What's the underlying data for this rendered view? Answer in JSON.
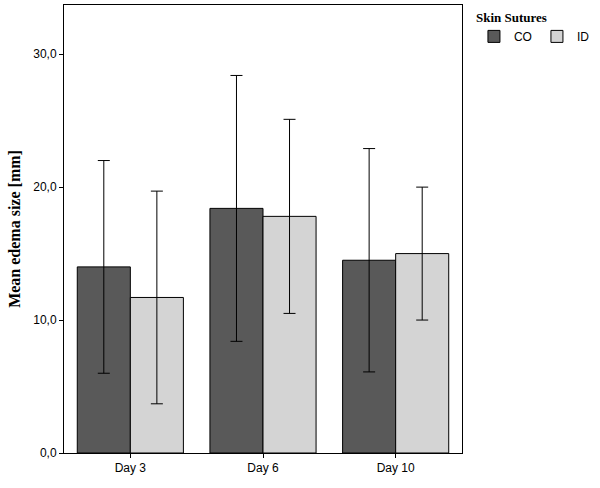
{
  "chart_data": {
    "type": "bar",
    "y_label": "Mean edema size [mm]",
    "legend_title": "Skin Sutures",
    "categories": [
      "Day 3",
      "Day 6",
      "Day 10"
    ],
    "series": [
      {
        "name": "CO",
        "color": "#595959",
        "values": [
          14.0,
          18.4,
          14.5
        ],
        "errors": [
          8.0,
          10.0,
          8.4
        ]
      },
      {
        "name": "ID",
        "color": "#d4d4d4",
        "values": [
          11.7,
          17.8,
          15.0
        ],
        "errors": [
          8.0,
          7.3,
          5.0
        ]
      }
    ],
    "ylim": [
      0,
      33.7
    ],
    "yticks": [
      {
        "value": 0,
        "label": "0,0"
      },
      {
        "value": 10,
        "label": "10,0"
      },
      {
        "value": 20,
        "label": "20,0"
      },
      {
        "value": 30,
        "label": "30,0"
      }
    ],
    "grid": false,
    "legend": "top right"
  }
}
